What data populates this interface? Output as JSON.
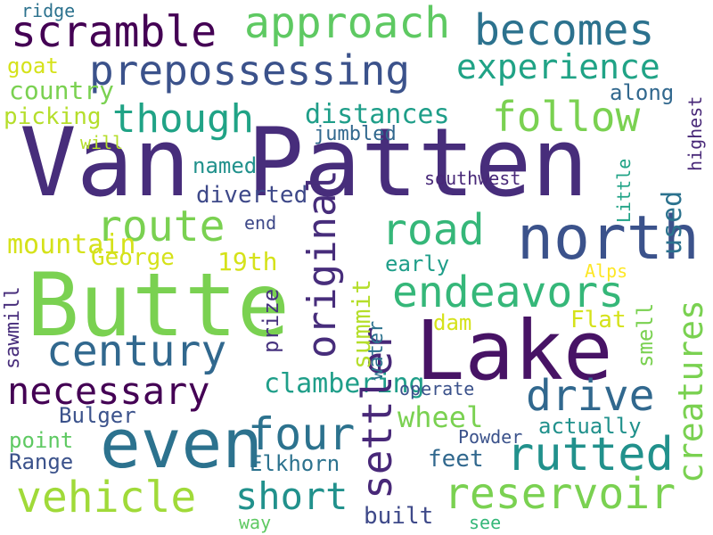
{
  "words": [
    {
      "id": "van-patten",
      "text": "Van Patten",
      "color": "#472d7b"
    },
    {
      "id": "lake",
      "text": "Lake",
      "color": "#471365"
    },
    {
      "id": "butte",
      "text": "Butte",
      "color": "#7ad151"
    },
    {
      "id": "north",
      "text": "north",
      "color": "#3b528b"
    },
    {
      "id": "even",
      "text": "even",
      "color": "#2c728e"
    },
    {
      "id": "prepossessing",
      "text": "prepossessing",
      "color": "#3b528b"
    },
    {
      "id": "scramble",
      "text": "scramble",
      "color": "#440154"
    },
    {
      "id": "approach",
      "text": "approach",
      "color": "#5ec962"
    },
    {
      "id": "becomes",
      "text": "becomes",
      "color": "#2c728e"
    },
    {
      "id": "experience",
      "text": "experience",
      "color": "#20a386"
    },
    {
      "id": "follow",
      "text": "follow",
      "color": "#7ad151"
    },
    {
      "id": "though",
      "text": "though",
      "color": "#20a386"
    },
    {
      "id": "route",
      "text": "route",
      "color": "#7ad151"
    },
    {
      "id": "road",
      "text": "road",
      "color": "#35b779"
    },
    {
      "id": "century",
      "text": "century",
      "color": "#31688e"
    },
    {
      "id": "necessary",
      "text": "necessary",
      "color": "#440154"
    },
    {
      "id": "endeavors",
      "text": "endeavors",
      "color": "#35b779"
    },
    {
      "id": "drive",
      "text": "drive",
      "color": "#31688e"
    },
    {
      "id": "four",
      "text": "four",
      "color": "#2c728e"
    },
    {
      "id": "rutted",
      "text": "rutted",
      "color": "#21918c"
    },
    {
      "id": "vehicle",
      "text": "vehicle",
      "color": "#a0da39"
    },
    {
      "id": "short",
      "text": "short",
      "color": "#21918c"
    },
    {
      "id": "reservoir",
      "text": "reservoir",
      "color": "#7ad151"
    },
    {
      "id": "wheel",
      "text": "wheel",
      "color": "#7ad151"
    },
    {
      "id": "distances",
      "text": "distances",
      "color": "#1f9e89"
    },
    {
      "id": "19th",
      "text": "19th",
      "color": "#d5e21a"
    },
    {
      "id": "mountain",
      "text": "mountain",
      "color": "#d5e21a"
    },
    {
      "id": "clambering",
      "text": "clambering",
      "color": "#1f9e89"
    },
    {
      "id": "country",
      "text": "country",
      "color": "#7ad151"
    },
    {
      "id": "picking",
      "text": "picking",
      "color": "#b5de2b"
    },
    {
      "id": "goat",
      "text": "goat",
      "color": "#d5e21a"
    },
    {
      "id": "ridge",
      "text": "ridge",
      "color": "#2c728e"
    },
    {
      "id": "along",
      "text": "along",
      "color": "#31688e"
    },
    {
      "id": "will",
      "text": "will",
      "color": "#b5de2b"
    },
    {
      "id": "jumbled",
      "text": "jumbled",
      "color": "#31688e"
    },
    {
      "id": "named",
      "text": "named",
      "color": "#21918c"
    },
    {
      "id": "diverted",
      "text": "diverted",
      "color": "#3e4989"
    },
    {
      "id": "end",
      "text": "end",
      "color": "#3e4989"
    },
    {
      "id": "southwest",
      "text": "southwest",
      "color": "#482878"
    },
    {
      "id": "george",
      "text": "George",
      "color": "#d5e21a"
    },
    {
      "id": "early",
      "text": "early",
      "color": "#1f9e89"
    },
    {
      "id": "alps",
      "text": "Alps",
      "color": "#fde725"
    },
    {
      "id": "flat",
      "text": "Flat",
      "color": "#d5e21a"
    },
    {
      "id": "dam",
      "text": "dam",
      "color": "#d5e21a"
    },
    {
      "id": "operate",
      "text": "operate",
      "color": "#3b528b"
    },
    {
      "id": "bulger",
      "text": "Bulger",
      "color": "#3b528b"
    },
    {
      "id": "actually",
      "text": "actually",
      "color": "#21918c"
    },
    {
      "id": "point",
      "text": "point",
      "color": "#5ec962"
    },
    {
      "id": "powder",
      "text": "Powder",
      "color": "#3b528b"
    },
    {
      "id": "range",
      "text": "Range",
      "color": "#3b528b"
    },
    {
      "id": "elkhorn",
      "text": "Elkhorn",
      "color": "#2c728e"
    },
    {
      "id": "feet",
      "text": "feet",
      "color": "#31688e"
    },
    {
      "id": "way",
      "text": "way",
      "color": "#5ec962"
    },
    {
      "id": "built",
      "text": "built",
      "color": "#3e4989"
    },
    {
      "id": "see",
      "text": "see",
      "color": "#35b779"
    },
    {
      "id": "original",
      "text": "original",
      "color": "#472d7b"
    },
    {
      "id": "creatures",
      "text": "creatures",
      "color": "#7ad151"
    },
    {
      "id": "settler",
      "text": "settler",
      "color": "#482878"
    },
    {
      "id": "summit",
      "text": "summit",
      "color": "#b5de2b"
    },
    {
      "id": "used",
      "text": "used",
      "color": "#2c728e"
    },
    {
      "id": "little",
      "text": "Little",
      "color": "#20a386"
    },
    {
      "id": "highest",
      "text": "highest",
      "color": "#482878"
    },
    {
      "id": "prize",
      "text": "prize",
      "color": "#46327e"
    },
    {
      "id": "sawmill",
      "text": "sawmill",
      "color": "#472d7b"
    },
    {
      "id": "smell",
      "text": "smell",
      "color": "#7ad151"
    },
    {
      "id": "water",
      "text": "water",
      "color": "#2c728e"
    }
  ]
}
